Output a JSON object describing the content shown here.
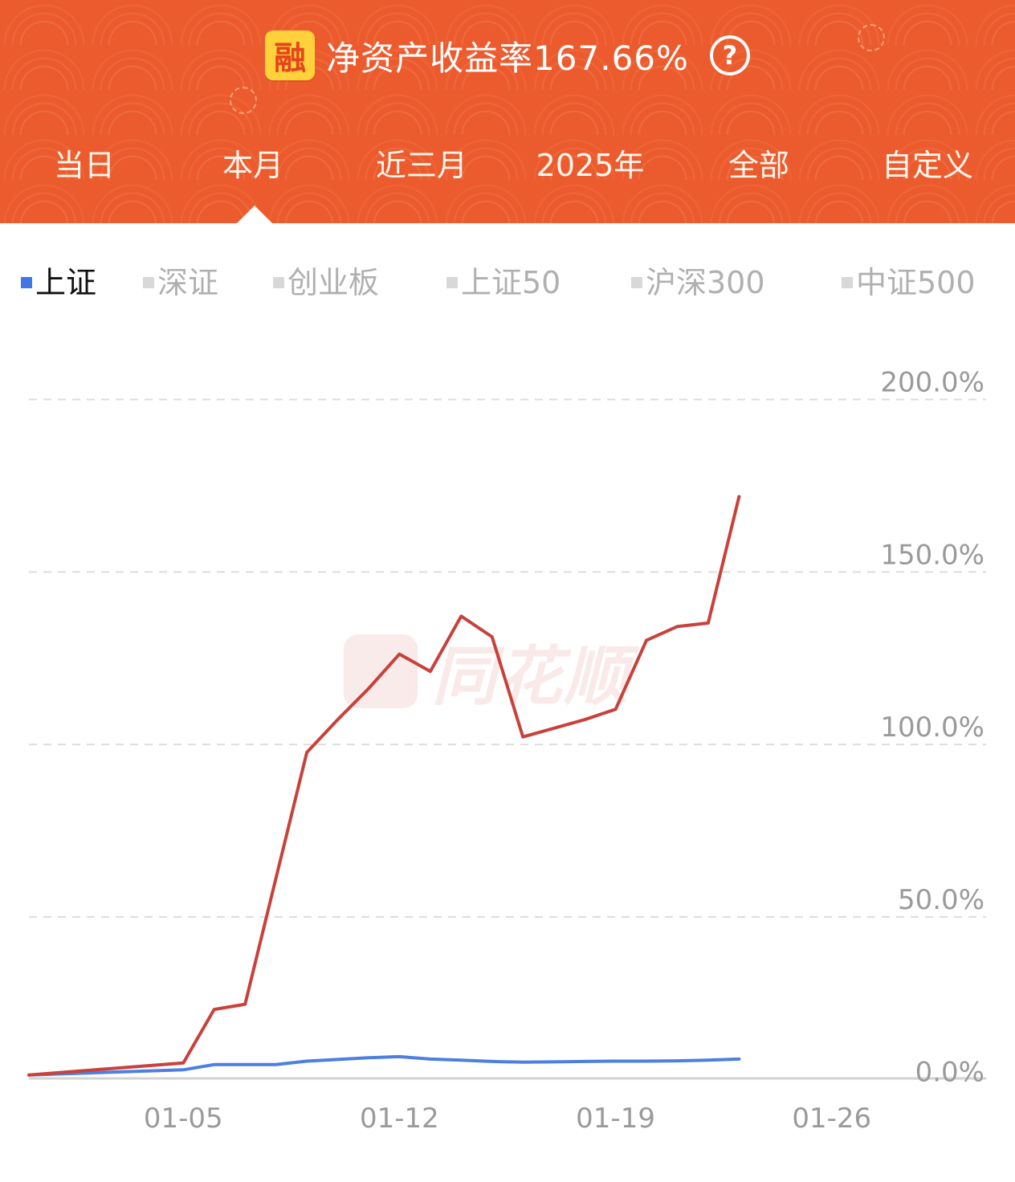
{
  "header": {
    "badge": "融",
    "title": "净资产收益率167.66%",
    "help_icon": "question-circle-icon",
    "tabs": [
      "当日",
      "本月",
      "近三月",
      "2025年",
      "全部",
      "自定义"
    ],
    "selected_tab": "本月"
  },
  "indices": {
    "items": [
      "上证",
      "深证",
      "创业板",
      "上证50",
      "沪深300",
      "中证500"
    ],
    "selected": "上证"
  },
  "watermark": "同花顺",
  "colors": {
    "header_bg": "#ec5b2d",
    "portfolio_line": "#c8413a",
    "index_line": "#4d7fe0",
    "active_index": "#3f77e6",
    "grid": "#dddddd",
    "tick_text": "#9a9a9a"
  },
  "chart_data": {
    "type": "line",
    "y_tick_labels": [
      "0.0%",
      "50.0%",
      "100.0%",
      "150.0%",
      "200.0%"
    ],
    "y_ticks": [
      0,
      50,
      100,
      150,
      200
    ],
    "ylim": [
      -1,
      205
    ],
    "x_tick_labels": [
      "01-05",
      "01-12",
      "01-19",
      "01-26"
    ],
    "x_ticks": [
      "2026-01-05",
      "2026-01-12",
      "2026-01-19",
      "2026-01-26"
    ],
    "xlim": [
      "2025-12-31",
      "2026-01-31"
    ],
    "grid": true,
    "series": [
      {
        "color": "#c8413a",
        "x": [
          "2025-12-31",
          "2026-01-05",
          "2026-01-06",
          "2026-01-07",
          "2026-01-08",
          "2026-01-09",
          "2026-01-10",
          "2026-01-11",
          "2026-01-12",
          "2026-01-13",
          "2026-01-14",
          "2026-01-15",
          "2026-01-16",
          "2026-01-17",
          "2026-01-18",
          "2026-01-19",
          "2026-01-20",
          "2026-01-21",
          "2026-01-22",
          "2026-01-23"
        ],
        "values": [
          0,
          3.5,
          19,
          20.5,
          57,
          93.5,
          103,
          112,
          122,
          117,
          133,
          127,
          98,
          100.5,
          103,
          106,
          126,
          130,
          131,
          167.66
        ]
      },
      {
        "color": "#4d7fe0",
        "x": [
          "2025-12-31",
          "2026-01-05",
          "2026-01-06",
          "2026-01-07",
          "2026-01-08",
          "2026-01-09",
          "2026-01-10",
          "2026-01-11",
          "2026-01-12",
          "2026-01-13",
          "2026-01-14",
          "2026-01-15",
          "2026-01-16",
          "2026-01-17",
          "2026-01-18",
          "2026-01-19",
          "2026-01-20",
          "2026-01-21",
          "2026-01-22",
          "2026-01-23"
        ],
        "values": [
          0,
          1.5,
          3.0,
          3.0,
          3.0,
          4.0,
          4.5,
          5.0,
          5.3,
          4.6,
          4.3,
          3.9,
          3.7,
          3.8,
          3.9,
          4.0,
          4.0,
          4.1,
          4.3,
          4.6
        ]
      }
    ]
  }
}
